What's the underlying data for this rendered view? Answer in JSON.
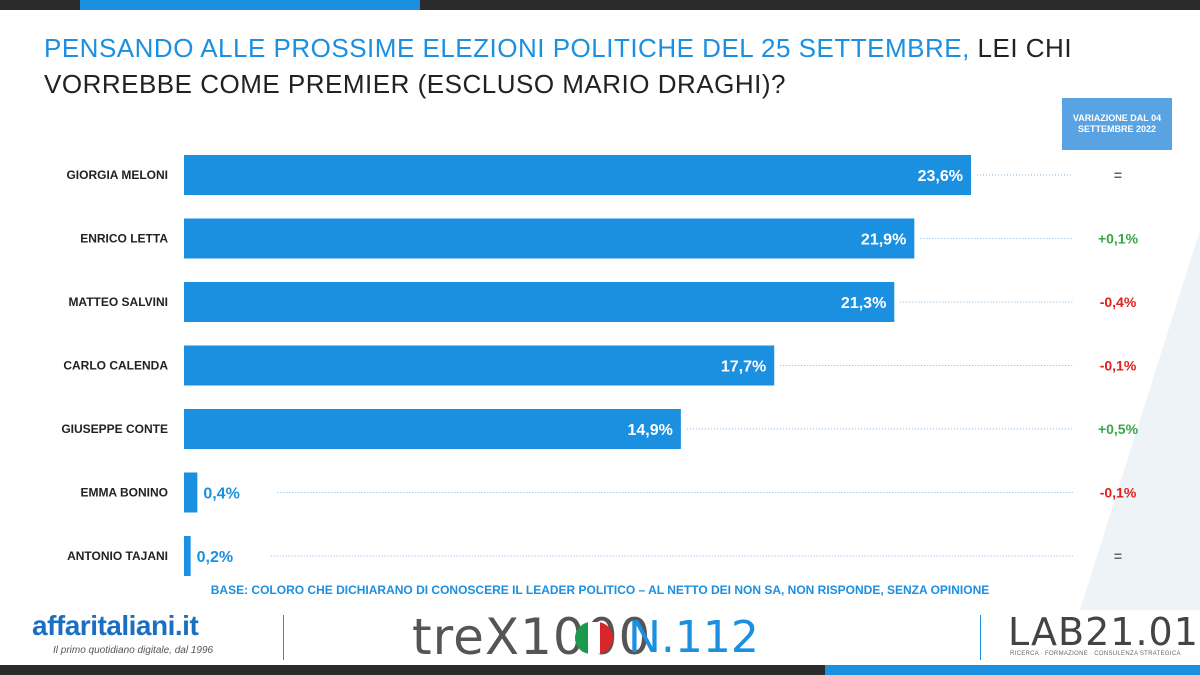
{
  "header": {
    "title_highlight": "PENSANDO ALLE PROSSIME ELEZIONI POLITICHE DEL 25 SETTEMBRE,",
    "title_rest": " LEI CHI VORREBBE COME PREMIER (ESCLUSO MARIO DRAGHI)?"
  },
  "variation_header": "VARIAZIONE DAL 04 SETTEMBRE 2022",
  "chart_data": {
    "type": "bar",
    "orientation": "horizontal",
    "categories": [
      "GIORGIA MELONI",
      "ENRICO LETTA",
      "MATTEO SALVINI",
      "CARLO CALENDA",
      "GIUSEPPE CONTE",
      "EMMA BONINO",
      "ANTONIO TAJANI"
    ],
    "values": [
      23.6,
      21.9,
      21.3,
      17.7,
      14.9,
      0.4,
      0.2
    ],
    "value_labels": [
      "23,6%",
      "21,9%",
      "21,3%",
      "17,7%",
      "14,9%",
      "0,4%",
      "0,2%"
    ],
    "variations": [
      "=",
      "+0,1%",
      "-0,4%",
      "-0,1%",
      "+0,5%",
      "-0,1%",
      "="
    ],
    "variation_colors": {
      "positive": "#3aa64a",
      "negative": "#e0201b",
      "neutral": "#666666"
    },
    "bar_color": "#1b8fe0",
    "xlim": [
      0,
      25
    ],
    "grid": false
  },
  "footnote": "BASE: COLORO CHE DICHIARANO DI CONOSCERE IL LEADER POLITICO – AL NETTO DEI NON SA, NON RISPONDE, SENZA OPINIONE",
  "logos": {
    "affaritaliani": "affaritaliani.it",
    "affaritaliani_tagline": "Il primo quotidiano digitale, dal 1996",
    "trex": "treX1000",
    "trex_number": "N.112",
    "lab": "LAB21.01",
    "lab_tagline": "RICERCA · FORMAZIONE · CONSULENZA STRATEGICA"
  }
}
